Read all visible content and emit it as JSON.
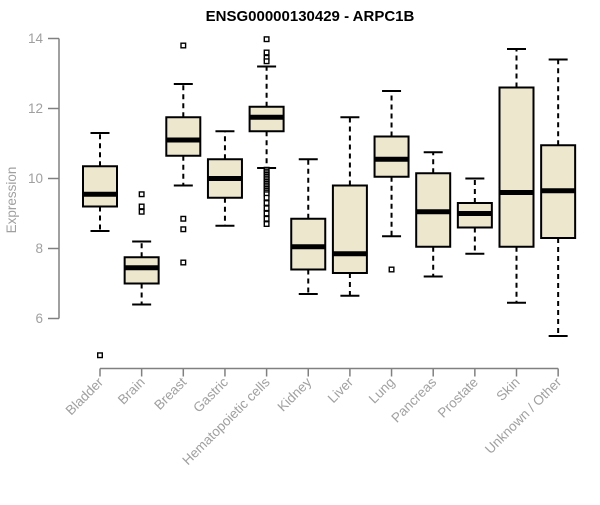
{
  "chart_data": {
    "type": "boxplot",
    "title": "ENSG00000130429 - ARPC1B",
    "ylabel": "Expression",
    "xlabel": "",
    "ylim": [
      6,
      14
    ],
    "yticks": [
      14,
      12,
      10,
      8,
      6
    ],
    "grid": false,
    "legend": "none",
    "categories": [
      "Bladder",
      "Brain",
      "Breast",
      "Gastric",
      "Hematopoietic cells",
      "Kidney",
      "Liver",
      "Lung",
      "Pancreas",
      "Prostate",
      "Skin",
      "Unknown / Other"
    ],
    "series": [
      {
        "category": "Bladder",
        "whisker_low": 8.5,
        "q1": 9.2,
        "median": 9.55,
        "q3": 10.35,
        "whisker_high": 11.3,
        "outliers": [
          4.95
        ]
      },
      {
        "category": "Brain",
        "whisker_low": 6.4,
        "q1": 7.0,
        "median": 7.45,
        "q3": 7.75,
        "whisker_high": 8.2,
        "outliers": [
          9.55,
          9.2,
          9.05
        ]
      },
      {
        "category": "Breast",
        "whisker_low": 9.8,
        "q1": 10.65,
        "median": 11.1,
        "q3": 11.75,
        "whisker_high": 12.7,
        "outliers": [
          13.8,
          8.85,
          8.55,
          7.6
        ]
      },
      {
        "category": "Gastric",
        "whisker_low": 8.65,
        "q1": 9.45,
        "median": 10.0,
        "q3": 10.55,
        "whisker_high": 11.35,
        "outliers": []
      },
      {
        "category": "Hematopoietic cells",
        "whisker_low": 10.3,
        "q1": 11.35,
        "median": 11.75,
        "q3": 12.05,
        "whisker_high": 13.2,
        "outliers": [
          13.98,
          13.6,
          13.45,
          13.35,
          10.25,
          10.2,
          10.15,
          10.1,
          10.05,
          10.0,
          9.95,
          9.9,
          9.85,
          9.8,
          9.75,
          9.7,
          9.65,
          9.6,
          9.55,
          9.45,
          9.3,
          9.15,
          9.0,
          8.85,
          8.7
        ]
      },
      {
        "category": "Kidney",
        "whisker_low": 6.7,
        "q1": 7.4,
        "median": 8.05,
        "q3": 8.85,
        "whisker_high": 10.55,
        "outliers": []
      },
      {
        "category": "Liver",
        "whisker_low": 6.65,
        "q1": 7.3,
        "median": 7.85,
        "q3": 9.8,
        "whisker_high": 11.75,
        "outliers": []
      },
      {
        "category": "Lung",
        "whisker_low": 8.35,
        "q1": 10.05,
        "median": 10.55,
        "q3": 11.2,
        "whisker_high": 12.5,
        "outliers": [
          7.4
        ]
      },
      {
        "category": "Pancreas",
        "whisker_low": 7.2,
        "q1": 8.05,
        "median": 9.05,
        "q3": 10.15,
        "whisker_high": 10.75,
        "outliers": []
      },
      {
        "category": "Prostate",
        "whisker_low": 7.85,
        "q1": 8.6,
        "median": 9.0,
        "q3": 9.3,
        "whisker_high": 10.0,
        "outliers": []
      },
      {
        "category": "Skin",
        "whisker_low": 6.45,
        "q1": 8.05,
        "median": 9.6,
        "q3": 12.6,
        "whisker_high": 13.7,
        "outliers": []
      },
      {
        "category": "Unknown / Other",
        "whisker_low": 5.5,
        "q1": 8.3,
        "median": 9.65,
        "q3": 10.95,
        "whisker_high": 13.4,
        "outliers": []
      }
    ],
    "colors": {
      "box_fill": "#EDE7CE",
      "box_border": "#000000",
      "median": "#000000",
      "whisker": "#000000",
      "outlier_fill": "#FFFFFF",
      "axis": "#808080",
      "tick_label": "#A0A0A0",
      "title": "#000000",
      "background": "#FFFFFF"
    }
  }
}
